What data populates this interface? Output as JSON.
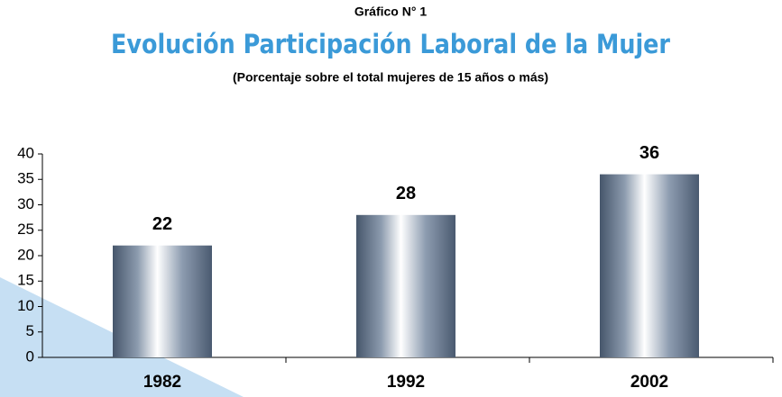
{
  "chart_data": {
    "type": "bar",
    "kicker": "Gráfico N° 1",
    "title": "Evolución Participación Laboral de la Mujer",
    "subtitle": "(Porcentaje sobre el total mujeres de 15 años o más)",
    "categories": [
      "1982",
      "1992",
      "2002"
    ],
    "values": [
      22,
      28,
      36
    ],
    "ylim": [
      0,
      40
    ],
    "yticks": [
      0,
      5,
      10,
      15,
      20,
      25,
      30,
      35,
      40
    ],
    "grid": false
  }
}
